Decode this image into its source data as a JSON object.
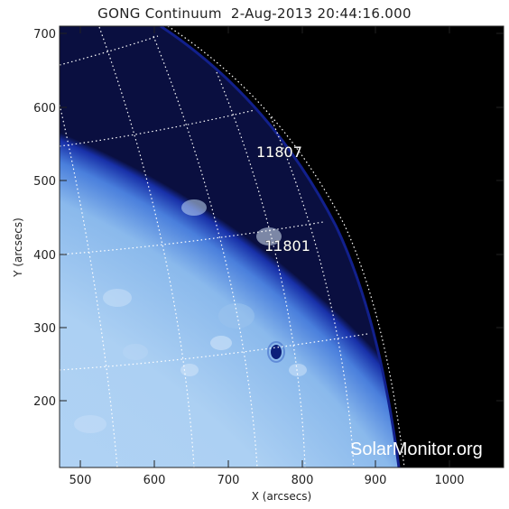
{
  "title": "GONG Continuum  2-Aug-2013 20:44:16.000",
  "x_axis": {
    "label": "X (arcsecs)",
    "ticks": [
      "500",
      "600",
      "700",
      "800",
      "900",
      "1000"
    ]
  },
  "y_axis": {
    "label": "Y (arcsecs)",
    "ticks": [
      "700",
      "600",
      "500",
      "400",
      "300",
      "200"
    ]
  },
  "regions": [
    {
      "number": "11807"
    },
    {
      "number": "11801"
    }
  ],
  "watermark": "SolarMonitor.org",
  "colors": {
    "disk": "#a9cdf1",
    "limb": "#1a3ab8",
    "space": "#000000",
    "grid": "#ffffff"
  }
}
